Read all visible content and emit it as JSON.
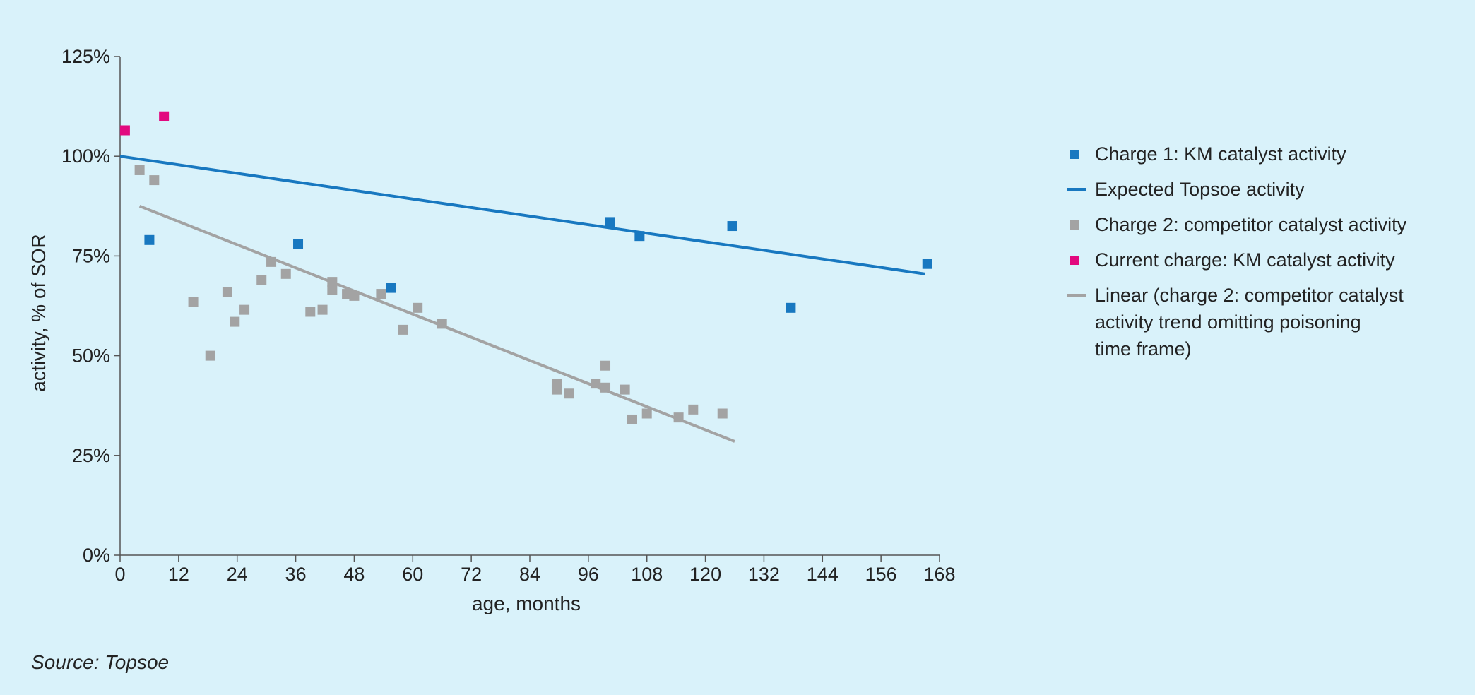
{
  "chart_data": {
    "type": "scatter",
    "xlabel": "age, months",
    "ylabel": "activity, % of SOR",
    "xlim": [
      0,
      168
    ],
    "ylim": [
      0,
      125
    ],
    "xticks": [
      "0",
      "12",
      "24",
      "36",
      "48",
      "60",
      "72",
      "84",
      "96",
      "108",
      "120",
      "132",
      "144",
      "156",
      "168"
    ],
    "yticks": [
      "0%",
      "25%",
      "50%",
      "75%",
      "100%",
      "125%"
    ],
    "series": [
      {
        "name": "Charge 1: KM catalyst activity",
        "kind": "points",
        "color": "#1878c0",
        "points": [
          [
            6,
            79
          ],
          [
            36.5,
            78
          ],
          [
            55.5,
            67
          ],
          [
            100.5,
            83.5
          ],
          [
            106.5,
            80
          ],
          [
            125.5,
            82.5
          ],
          [
            137.5,
            62
          ],
          [
            165.5,
            73
          ]
        ]
      },
      {
        "name": "Expected Topsoe activity",
        "kind": "line",
        "color": "#1878c0",
        "points": [
          [
            0,
            100
          ],
          [
            165,
            70.5
          ]
        ]
      },
      {
        "name": "Charge 2: competitor catalyst activity",
        "kind": "points",
        "color": "#a3a3a3",
        "points": [
          [
            4,
            96.5
          ],
          [
            7,
            94
          ],
          [
            15,
            63.5
          ],
          [
            18.5,
            50
          ],
          [
            22,
            66
          ],
          [
            23.5,
            58.5
          ],
          [
            25.5,
            61.5
          ],
          [
            29,
            69
          ],
          [
            31,
            73.5
          ],
          [
            34,
            70.5
          ],
          [
            39,
            61
          ],
          [
            41.5,
            61.5
          ],
          [
            43.5,
            68.5
          ],
          [
            43.5,
            66.5
          ],
          [
            46.5,
            65.5
          ],
          [
            48,
            65
          ],
          [
            53.5,
            65.5
          ],
          [
            58,
            56.5
          ],
          [
            61,
            62
          ],
          [
            66,
            58
          ],
          [
            89.5,
            43
          ],
          [
            89.5,
            41.5
          ],
          [
            92,
            40.5
          ],
          [
            97.5,
            43
          ],
          [
            99.5,
            47.5
          ],
          [
            99.5,
            42
          ],
          [
            103.5,
            41.5
          ],
          [
            105,
            34
          ],
          [
            108,
            35.5
          ],
          [
            114.5,
            34.5
          ],
          [
            117.5,
            36.5
          ],
          [
            123.5,
            35.5
          ]
        ]
      },
      {
        "name": "Current charge: KM catalyst activity",
        "kind": "points",
        "color": "#e2097e",
        "points": [
          [
            1,
            106.5
          ],
          [
            9,
            110
          ]
        ]
      },
      {
        "name": "Linear (charge 2: competitor catalyst activity trend omitting poisoning time frame)",
        "kind": "line",
        "color": "#a3a3a3",
        "points": [
          [
            4,
            87.5
          ],
          [
            126,
            28.5
          ]
        ]
      }
    ],
    "legend": {
      "position": "right",
      "items": [
        {
          "type": "marker",
          "color": "#1878c0",
          "lines": [
            "Charge 1: KM catalyst activity"
          ]
        },
        {
          "type": "line",
          "color": "#1878c0",
          "lines": [
            "Expected Topsoe activity"
          ]
        },
        {
          "type": "marker",
          "color": "#a3a3a3",
          "lines": [
            "Charge 2: competitor catalyst activity"
          ]
        },
        {
          "type": "marker",
          "color": "#e2097e",
          "lines": [
            "Current charge: KM catalyst activity"
          ]
        },
        {
          "type": "line",
          "color": "#a3a3a3",
          "lines": [
            "Linear (charge 2: competitor catalyst",
            "activity trend omitting poisoning",
            "time frame)"
          ]
        }
      ]
    }
  },
  "source": "Source: Topsoe"
}
